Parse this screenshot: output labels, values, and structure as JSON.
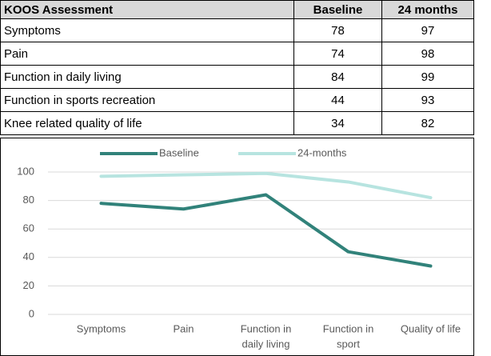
{
  "table": {
    "header": [
      "KOOS Assessment",
      "Baseline",
      "24 months"
    ],
    "rows": [
      [
        "Symptoms",
        "78",
        "97"
      ],
      [
        "Pain",
        "74",
        "98"
      ],
      [
        "Function in daily living",
        "84",
        "99"
      ],
      [
        "Function in sports recreation",
        "44",
        "93"
      ],
      [
        "Knee related quality of life",
        "34",
        "82"
      ]
    ]
  },
  "chart_data": {
    "type": "line",
    "categories": [
      [
        "Symptoms"
      ],
      [
        "Pain"
      ],
      [
        "Function in",
        "daily living"
      ],
      [
        "Function in",
        "sport"
      ],
      [
        "Quality of life"
      ]
    ],
    "series": [
      {
        "name": "Baseline",
        "color": "#31827a",
        "values": [
          78,
          74,
          84,
          44,
          34
        ]
      },
      {
        "name": "24-months",
        "color": "#b7e4e0",
        "values": [
          97,
          98,
          99,
          93,
          82
        ]
      }
    ],
    "ylim": [
      0,
      100
    ],
    "yticks": [
      0,
      20,
      40,
      60,
      80,
      100
    ],
    "grid": true,
    "legend": "top"
  }
}
